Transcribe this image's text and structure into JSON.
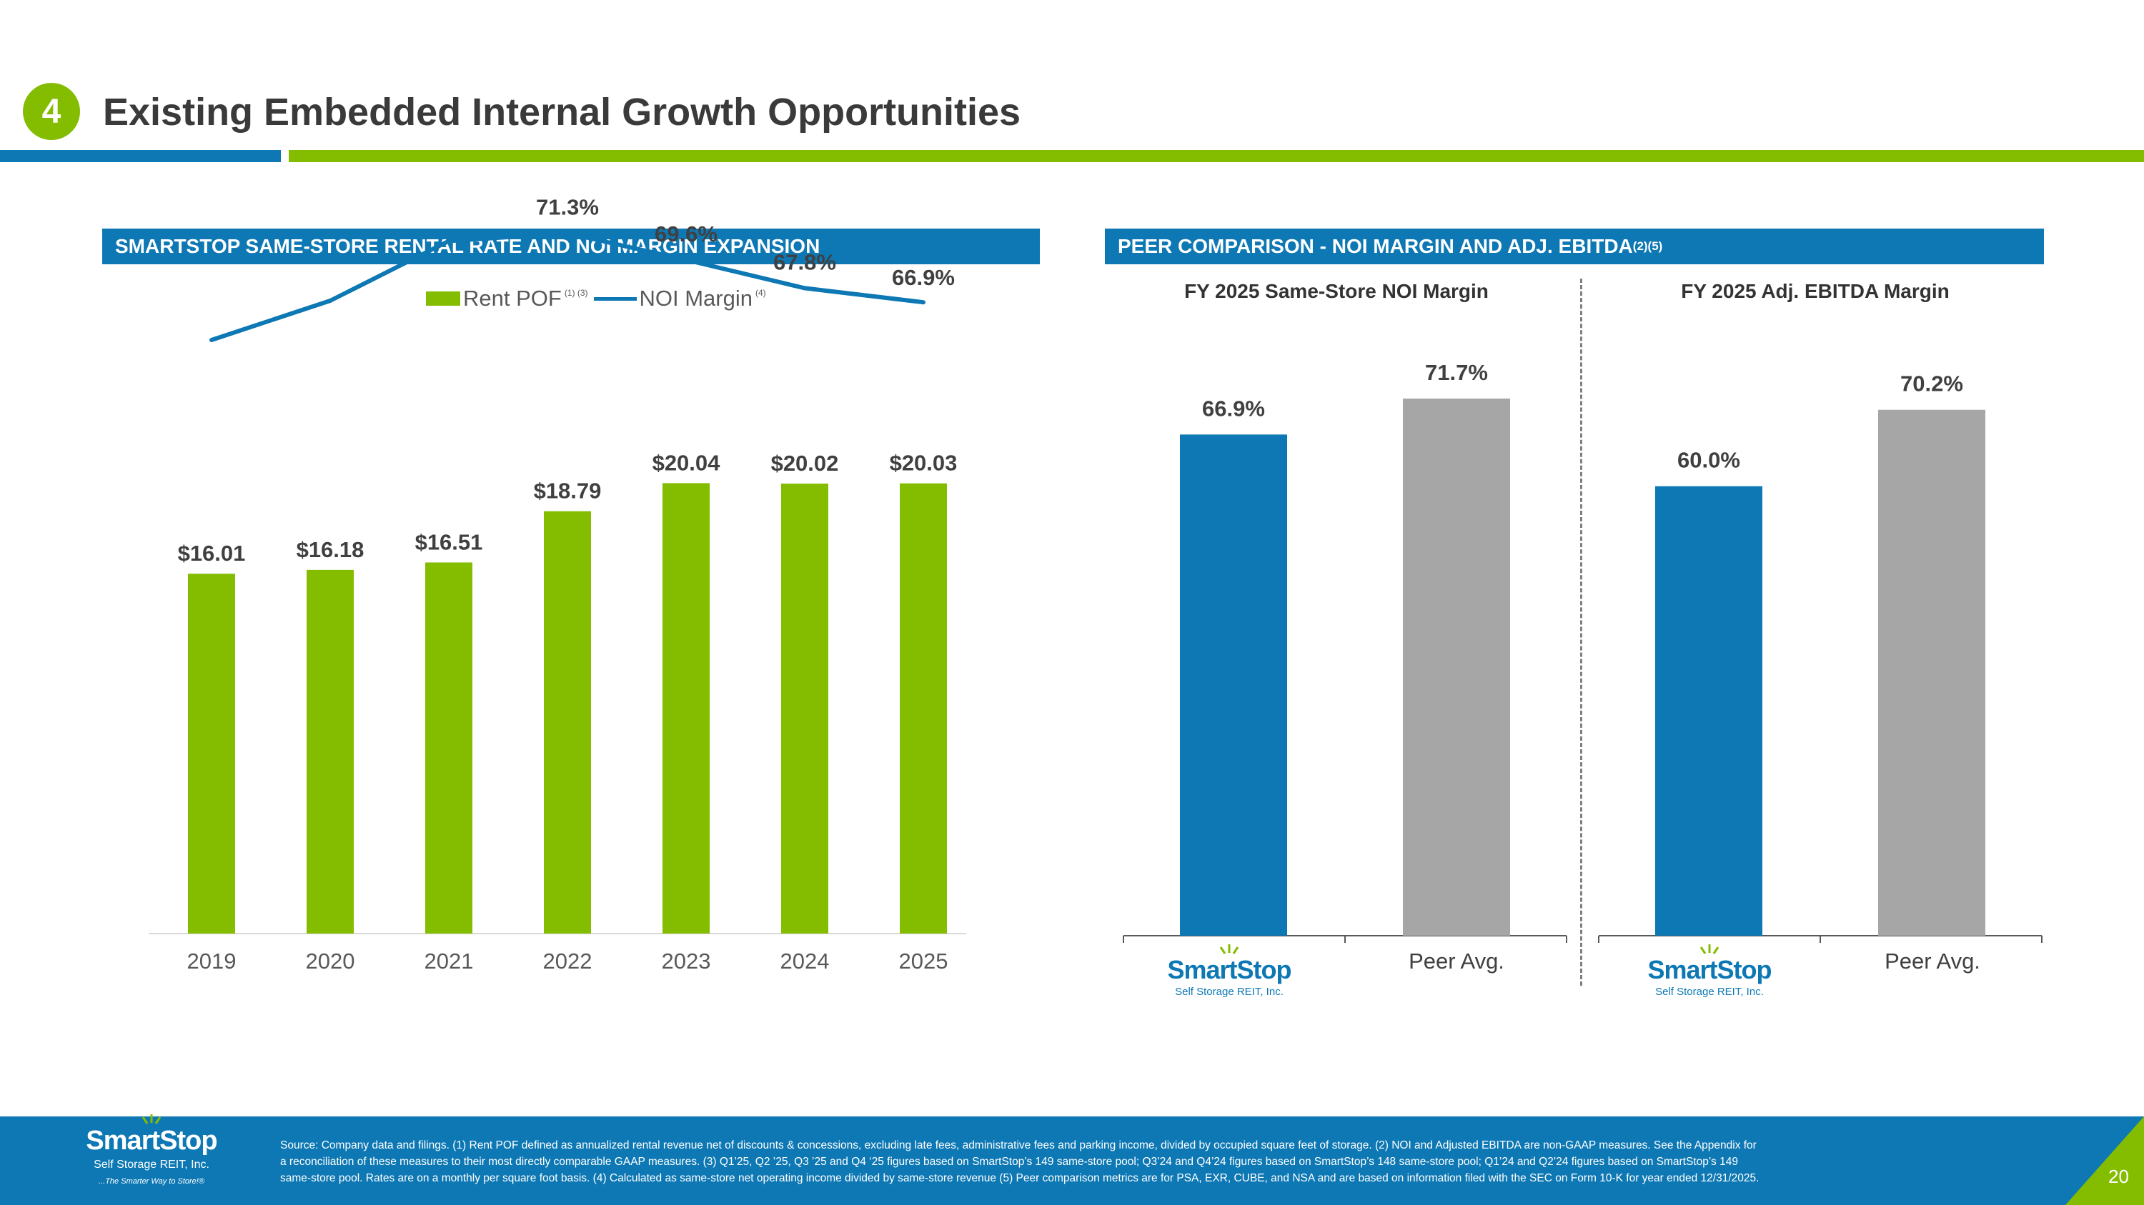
{
  "header": {
    "section_number": "4",
    "title": "Existing Embedded Internal Growth Opportunities"
  },
  "left_panel": {
    "header": "SMARTSTOP SAME-STORE RENTAL RATE AND NOI MARGIN EXPANSION",
    "legend": {
      "bar_label": "Rent POF",
      "bar_note": "(1) (3)",
      "line_label": "NOI Margin",
      "line_note": "(4)"
    }
  },
  "right_panel": {
    "header": "PEER COMPARISON - NOI MARGIN AND ADJ. EBITDA",
    "header_note": "(2)(5)",
    "logo": {
      "name": "SmartStop",
      "subtitle": "Self Storage REIT, Inc."
    }
  },
  "chart_data": [
    {
      "type": "bar",
      "title": "SMARTSTOP SAME-STORE RENTAL RATE AND NOI MARGIN EXPANSION",
      "categories": [
        "2019",
        "2020",
        "2021",
        "2022",
        "2023",
        "2024",
        "2025"
      ],
      "series": [
        {
          "name": "Rent POF",
          "type": "bar",
          "values": [
            16.01,
            16.18,
            16.51,
            18.79,
            20.04,
            20.02,
            20.03
          ],
          "labels": [
            "$16.01",
            "$16.18",
            "$16.51",
            "$18.79",
            "$20.04",
            "$20.02",
            "$20.03"
          ],
          "color": "#84bd00"
        },
        {
          "name": "NOI Margin",
          "type": "line",
          "values": [
            64.5,
            67.0,
            70.8,
            71.3,
            69.6,
            67.8,
            66.9
          ],
          "labels": [
            "",
            "",
            "",
            "71.3%",
            "69.6%",
            "67.8%",
            "66.9%"
          ],
          "color": "#0d78b4"
        }
      ],
      "ylim": [
        0,
        22
      ],
      "y2lim": [
        50,
        75
      ],
      "xlabel": "",
      "ylabel": ""
    },
    {
      "type": "bar",
      "title": "FY 2025 Same-Store NOI Margin",
      "categories": [
        "SmartStop",
        "Peer Avg."
      ],
      "values": [
        66.9,
        71.7
      ],
      "labels": [
        "66.9%",
        "71.7%"
      ],
      "colors": [
        "#0d78b4",
        "#a6a6a6"
      ],
      "ylim": [
        0,
        75
      ]
    },
    {
      "type": "bar",
      "title": "FY 2025 Adj. EBITDA Margin",
      "categories": [
        "SmartStop",
        "Peer Avg."
      ],
      "values": [
        60.0,
        70.2
      ],
      "labels": [
        "60.0%",
        "70.2%"
      ],
      "colors": [
        "#0d78b4",
        "#a6a6a6"
      ],
      "ylim": [
        0,
        75
      ]
    }
  ],
  "footer": {
    "logo_name": "SmartStop",
    "logo_subtitle": "Self Storage REIT, Inc.",
    "logo_tagline": "...The Smarter Way to Store!®",
    "footnote_line1": "Source: Company data and filings. (1) Rent POF defined as annualized rental revenue net of discounts & concessions, excluding late fees, administrative fees and parking income, divided by occupied square feet of storage. (2) NOI and Adjusted EBITDA are non-GAAP measures. See the Appendix for",
    "footnote_line2": "a reconciliation of these measures to their most directly comparable GAAP measures. (3) Q1’25, Q2 ’25, Q3 ’25 and Q4 ‘25 figures based on SmartStop’s 149 same-store pool; Q3’24 and Q4’24 figures based on SmartStop’s 148 same-store pool; Q1’24 and Q2’24 figures based on SmartStop’s 149",
    "footnote_line3": "same-store pool. Rates are on a monthly per square foot basis. (4) Calculated as same-store net operating income divided by same-store revenue (5) Peer comparison metrics are for PSA, EXR, CUBE, and NSA and are based on information filed with the SEC on Form 10-K for year ended 12/31/2025.",
    "page_number": "20"
  },
  "colors": {
    "blue": "#0d78b4",
    "green": "#84bd00",
    "gray": "#a6a6a6"
  }
}
